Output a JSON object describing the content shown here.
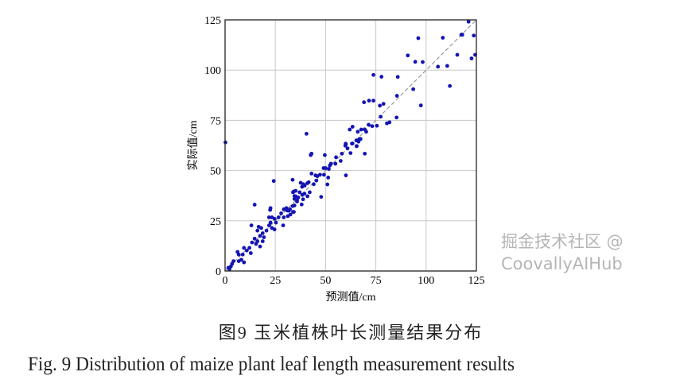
{
  "chart_data": {
    "type": "scatter",
    "xlabel": "预测值/cm",
    "ylabel": "实际值/cm",
    "xlim": [
      0,
      125
    ],
    "ylim": [
      0,
      125
    ],
    "xticks": [
      "0",
      "25",
      "50",
      "75",
      "100",
      "125"
    ],
    "yticks": [
      "0",
      "25",
      "50",
      "75",
      "100",
      "125"
    ],
    "grid": true,
    "reference_line": "y = x (dashed)",
    "point_color": "#1414b4",
    "points": [
      [
        121.1,
        124.1
      ],
      [
        117.5,
        117.6
      ],
      [
        118.0,
        117.6
      ],
      [
        123.7,
        117.2
      ],
      [
        96.1,
        115.9
      ],
      [
        108.3,
        116.1
      ],
      [
        90.9,
        107.3
      ],
      [
        94.6,
        104.1
      ],
      [
        98.3,
        104.0
      ],
      [
        115.5,
        107.6
      ],
      [
        124.4,
        107.6
      ],
      [
        122.6,
        105.8
      ],
      [
        105.9,
        101.7
      ],
      [
        110.5,
        102.1
      ],
      [
        111.8,
        92.1
      ],
      [
        73.8,
        97.6
      ],
      [
        77.8,
        96.7
      ],
      [
        85.9,
        96.6
      ],
      [
        93.6,
        90.5
      ],
      [
        97.4,
        82.4
      ],
      [
        85.5,
        87.2
      ],
      [
        69.1,
        84.0
      ],
      [
        71.6,
        84.8
      ],
      [
        73.8,
        84.8
      ],
      [
        77.0,
        82.3
      ],
      [
        78.8,
        83.2
      ],
      [
        77.4,
        76.8
      ],
      [
        85.3,
        76.4
      ],
      [
        80.5,
        73.5
      ],
      [
        81.8,
        74.0
      ],
      [
        75.5,
        72.3
      ],
      [
        71.4,
        72.8
      ],
      [
        73.2,
        72.1
      ],
      [
        62.0,
        70.4
      ],
      [
        63.4,
        71.8
      ],
      [
        66.0,
        69.3
      ],
      [
        67.7,
        70.4
      ],
      [
        69.4,
        70.5
      ],
      [
        70.2,
        69.3
      ],
      [
        67.4,
        65.7
      ],
      [
        66.4,
        64.4
      ],
      [
        40.5,
        68.3
      ],
      [
        0.2,
        64.0
      ],
      [
        60.0,
        63.4
      ],
      [
        63.4,
        63.5
      ],
      [
        65.5,
        62.2
      ],
      [
        43.0,
        58.4
      ],
      [
        42.6,
        57.7
      ],
      [
        49.6,
        57.7
      ],
      [
        60.1,
        63.0
      ],
      [
        59.8,
        62.4
      ],
      [
        63.1,
        63.4
      ],
      [
        65.3,
        65.0
      ],
      [
        66.8,
        65.7
      ],
      [
        60.9,
        61.0
      ],
      [
        65.4,
        62.1
      ],
      [
        62.4,
        58.7
      ],
      [
        69.5,
        58.4
      ],
      [
        58.1,
        58.4
      ],
      [
        55.2,
        56.6
      ],
      [
        57.5,
        54.8
      ],
      [
        54.9,
        53.4
      ],
      [
        52.7,
        53.4
      ],
      [
        52.1,
        52.5
      ],
      [
        49.0,
        51.2
      ],
      [
        50.0,
        51.2
      ],
      [
        51.6,
        50.8
      ],
      [
        43.0,
        48.5
      ],
      [
        45.0,
        47.6
      ],
      [
        45.9,
        47.2
      ],
      [
        47.2,
        47.9
      ],
      [
        49.2,
        47.9
      ],
      [
        51.3,
        46.5
      ],
      [
        60.1,
        47.6
      ],
      [
        50.9,
        43.1
      ],
      [
        33.6,
        45.4
      ],
      [
        37.6,
        43.9
      ],
      [
        38.9,
        43.2
      ],
      [
        39.6,
        42.5
      ],
      [
        40.9,
        43.7
      ],
      [
        41.6,
        44.2
      ],
      [
        38.3,
        41.9
      ],
      [
        44.1,
        43.2
      ],
      [
        45.4,
        45.0
      ],
      [
        34.2,
        39.6
      ],
      [
        37.1,
        39.2
      ],
      [
        35.1,
        37.2
      ],
      [
        38.4,
        37.9
      ],
      [
        39.5,
        38.5
      ],
      [
        42.1,
        39.2
      ],
      [
        41.0,
        37.2
      ],
      [
        34.5,
        35.9
      ],
      [
        35.8,
        35.3
      ],
      [
        38.8,
        35.7
      ],
      [
        47.8,
        36.9
      ],
      [
        38.1,
        33.1
      ],
      [
        33.6,
        32.3
      ],
      [
        32.3,
        30.7
      ],
      [
        30.9,
        30.1
      ],
      [
        34.2,
        29.4
      ],
      [
        32.5,
        28.1
      ],
      [
        24.2,
        44.8
      ],
      [
        14.7,
        33.0
      ],
      [
        13.1,
        22.7
      ],
      [
        22.6,
        31.3
      ],
      [
        22.4,
        30.4
      ],
      [
        21.9,
        26.7
      ],
      [
        23.3,
        26.7
      ],
      [
        24.6,
        26.0
      ],
      [
        29.2,
        30.7
      ],
      [
        30.5,
        31.3
      ],
      [
        31.8,
        30.0
      ],
      [
        33.8,
        29.4
      ],
      [
        27.9,
        28.7
      ],
      [
        26.6,
        26.7
      ],
      [
        29.2,
        26.7
      ],
      [
        31.2,
        27.3
      ],
      [
        34.5,
        32.6
      ],
      [
        35.8,
        34.6
      ],
      [
        28.9,
        22.7
      ],
      [
        25.3,
        24.1
      ],
      [
        21.9,
        22.7
      ],
      [
        23.3,
        21.4
      ],
      [
        24.6,
        20.7
      ],
      [
        20.6,
        20.1
      ],
      [
        22.6,
        24.1
      ],
      [
        16.7,
        22.0
      ],
      [
        18.0,
        21.4
      ],
      [
        16.1,
        20.1
      ],
      [
        18.7,
        18.8
      ],
      [
        17.4,
        17.5
      ],
      [
        14.7,
        16.1
      ],
      [
        16.1,
        14.8
      ],
      [
        13.4,
        14.2
      ],
      [
        15.4,
        13.5
      ],
      [
        17.4,
        12.2
      ],
      [
        18.7,
        14.8
      ],
      [
        19.3,
        16.8
      ],
      [
        12.1,
        11.5
      ],
      [
        10.8,
        10.2
      ],
      [
        12.8,
        8.9
      ],
      [
        9.4,
        11.5
      ],
      [
        8.8,
        8.2
      ],
      [
        6.8,
        8.2
      ],
      [
        6.2,
        9.5
      ],
      [
        8.1,
        5.6
      ],
      [
        9.4,
        4.3
      ],
      [
        6.8,
        4.9
      ],
      [
        4.2,
        4.9
      ],
      [
        3.5,
        3.6
      ],
      [
        2.9,
        2.3
      ],
      [
        1.6,
        1.6
      ],
      [
        2.2,
        0.9
      ],
      [
        33.8,
        39.2
      ],
      [
        35.1,
        39.9
      ],
      [
        34.5,
        37.3
      ],
      [
        36.4,
        36.6
      ]
    ]
  },
  "caption": {
    "chinese": "图9  玉米植株叶长测量结果分布",
    "english": "Fig. 9  Distribution of maize plant leaf length measurement results"
  },
  "watermark": "掘金技术社区 @ CoovallyAIHub"
}
